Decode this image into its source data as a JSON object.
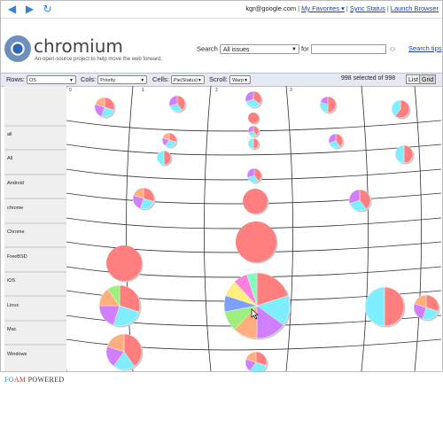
{
  "nav": {
    "back_icon": "back-arrow-icon",
    "forward_icon": "forward-arrow-icon",
    "reload_icon": "reload-icon"
  },
  "user": {
    "email": "kgr@google.com",
    "links": [
      "My Favorites ▾",
      "Sync Status",
      "Launch Browser"
    ]
  },
  "header": {
    "title": "chromium",
    "tagline": "An open-source project to help move the web forward."
  },
  "search": {
    "label": "Search",
    "scope": "All issues",
    "for_label": "for",
    "tips": "Search tips"
  },
  "toolbar": {
    "rows_label": "Rows:",
    "rows_value": "OS",
    "cols_label": "Cols:",
    "cols_value": "Priority",
    "cells_label": "Cells:",
    "cells_value": "Pie(Status)",
    "scroll_label": "Scroll:",
    "scroll_value": "Warp",
    "count": "998 selected of 998",
    "list": "List",
    "grid": "Grid"
  },
  "columns": [
    "0",
    "1",
    "2",
    "3"
  ],
  "rows": [
    "",
    "all",
    "All",
    "Android",
    "chrome",
    "Chrome",
    "FreeBSD",
    "iOS",
    "Linux",
    "Mac",
    "Windows"
  ],
  "palette": [
    "#ff7f7f",
    "#7fefff",
    "#cf7fff",
    "#ffaf7f",
    "#9fef7f",
    "#7f9fff",
    "#ffef7f",
    "#ff7fdf",
    "#7fffbf"
  ],
  "pies": [
    {
      "row": 0,
      "col": 1,
      "slices": [
        30,
        25,
        25,
        20
      ]
    },
    {
      "row": 0,
      "col": 2,
      "slices": [
        40,
        30,
        30
      ]
    },
    {
      "row": 0,
      "col": 3,
      "slices": [
        35,
        35,
        30
      ]
    },
    {
      "row": 0,
      "col": 4,
      "slices": [
        50,
        30,
        20
      ]
    },
    {
      "row": 0,
      "col": 5,
      "slices": [
        60,
        40
      ]
    },
    {
      "row": 1,
      "col": 3,
      "slices": [
        100
      ]
    },
    {
      "row": 2,
      "col": 2,
      "slices": [
        30,
        30,
        20,
        20
      ]
    },
    {
      "row": 2,
      "col": 3,
      "slices": [
        40,
        30,
        30
      ]
    },
    {
      "row": 2,
      "col": 4,
      "slices": [
        40,
        30,
        30
      ]
    },
    {
      "row": 3,
      "col": 2,
      "slices": [
        50,
        50
      ]
    },
    {
      "row": 3,
      "col": 3,
      "slices": [
        50,
        50
      ]
    },
    {
      "row": 3,
      "col": 5,
      "slices": [
        50,
        50
      ]
    },
    {
      "row": 4,
      "col": 3,
      "slices": [
        40,
        30,
        30
      ]
    },
    {
      "row": 5,
      "col": 2,
      "slices": [
        30,
        25,
        25,
        20
      ]
    },
    {
      "row": 5,
      "col": 3,
      "slices": [
        100
      ]
    },
    {
      "row": 5,
      "col": 4,
      "slices": [
        40,
        30,
        30
      ]
    },
    {
      "row": 6,
      "col": 3,
      "slices": [
        100
      ]
    },
    {
      "row": 7,
      "col": 1,
      "slices": [
        100
      ]
    },
    {
      "row": 9,
      "col": 1,
      "slices": [
        30,
        25,
        20,
        15,
        10
      ]
    },
    {
      "row": 9,
      "col": 3,
      "slices": [
        20,
        15,
        15,
        12,
        10,
        8,
        8,
        7,
        5
      ]
    },
    {
      "row": 9,
      "col": 5,
      "slices": [
        50,
        50
      ]
    },
    {
      "row": 9,
      "col": 6,
      "slices": [
        30,
        25,
        25,
        20
      ]
    },
    {
      "row": 10,
      "col": 1,
      "slices": [
        40,
        20,
        20,
        20
      ]
    },
    {
      "row": 11,
      "col": 3,
      "slices": [
        30,
        30,
        20,
        20
      ]
    }
  ],
  "footer": {
    "foam_a": "FO",
    "foam_b": "AM",
    "foam_c": " POWERED"
  }
}
